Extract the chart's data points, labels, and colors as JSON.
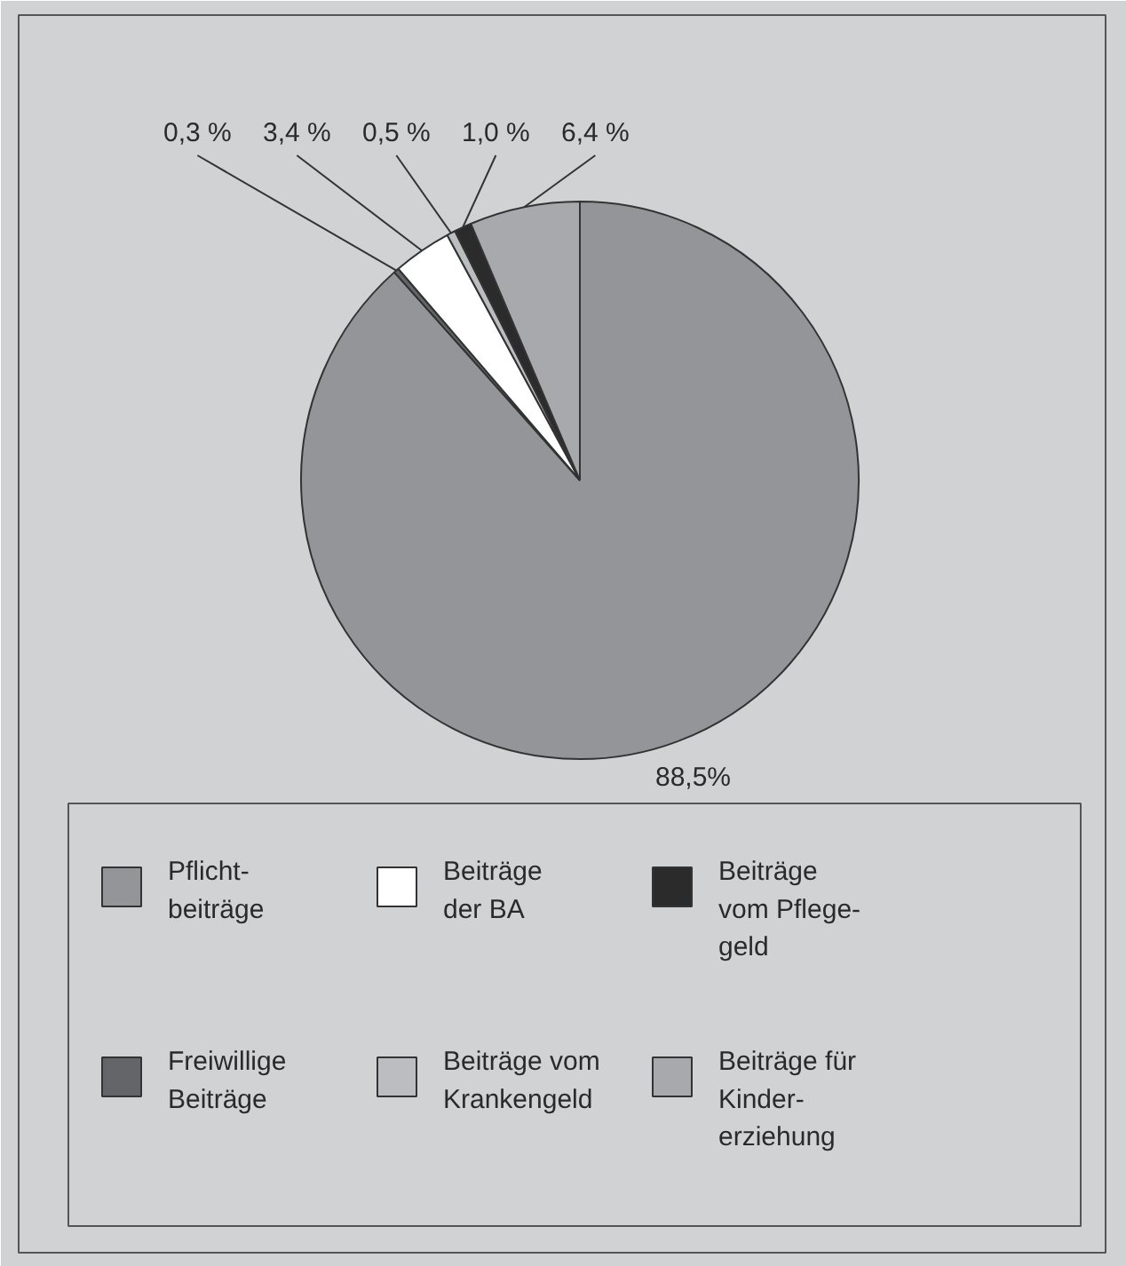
{
  "chart_data": {
    "type": "pie",
    "categories": [
      "Pflicht-\nbeiträge",
      "Freiwillige\nBeiträge",
      "Beiträge\nder BA",
      "Beiträge vom\nKrankengeld",
      "Beiträge\nvom Pflege-\ngeld",
      "Beiträge für\nKinder-\nerziehung"
    ],
    "values": [
      88.5,
      0.3,
      3.4,
      0.5,
      1.0,
      6.4
    ],
    "value_labels": [
      "88,5%",
      "0,3 %",
      "3,4 %",
      "0,5 %",
      "1,0 %",
      "6,4 %"
    ],
    "colors": [
      "#939598",
      "#646568",
      "#ffffff",
      "#bcbdc0",
      "#2b2b2c",
      "#a8a9ac"
    ],
    "legend": "bottom"
  }
}
